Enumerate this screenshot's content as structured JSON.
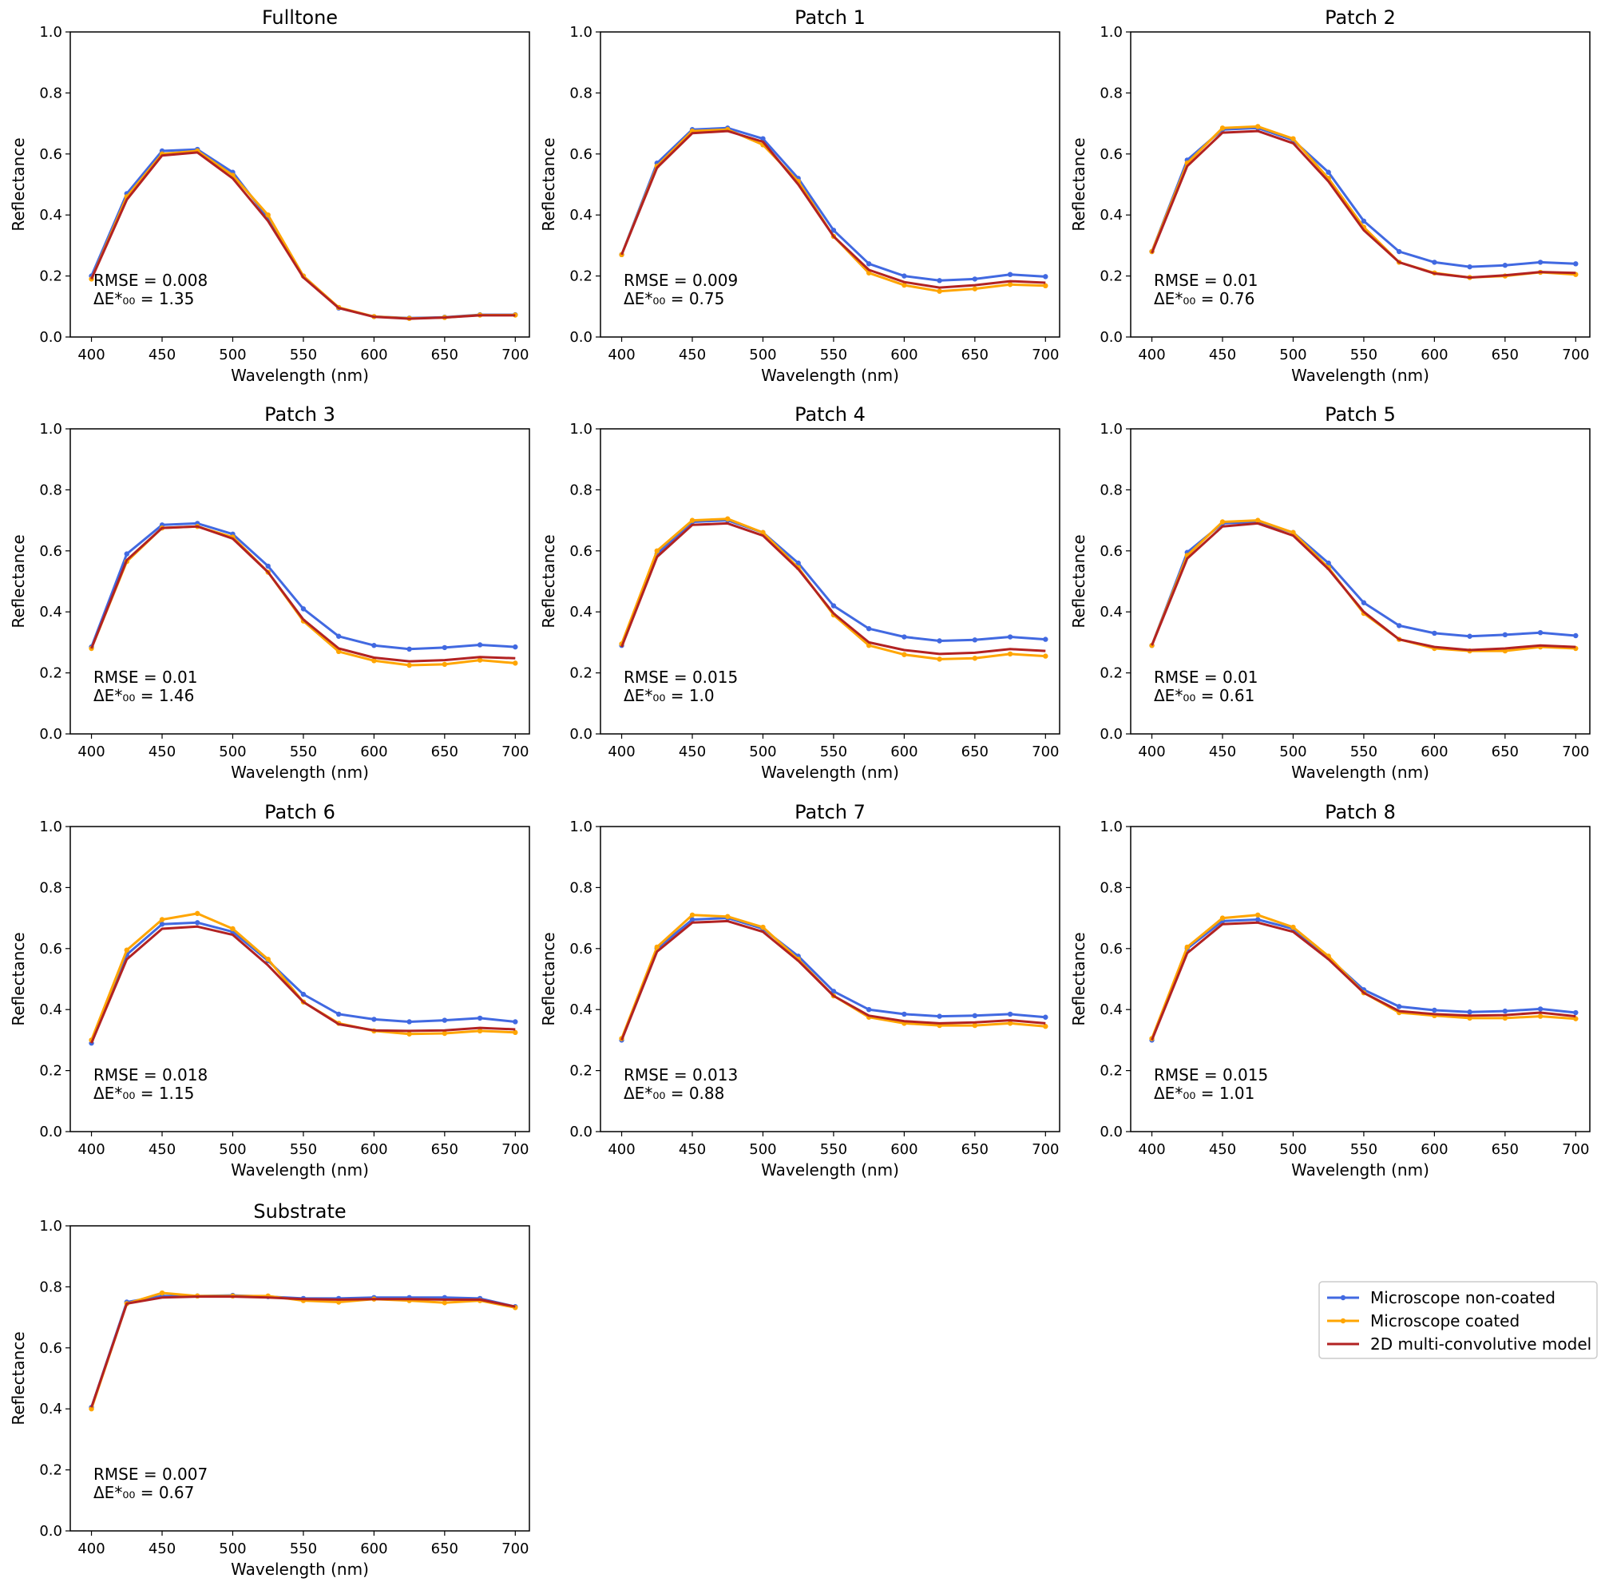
{
  "figure": {
    "legend": [
      {
        "label": "Microscope non-coated",
        "color": "#4169e1",
        "marker": true
      },
      {
        "label": "Microscope coated",
        "color": "#ffa500",
        "marker": true
      },
      {
        "label": "2D multi-convolutive model",
        "color": "#b22222",
        "marker": false
      }
    ]
  },
  "chart_data": [
    {
      "type": "line",
      "title": "Fulltone",
      "xlabel": "Wavelength (nm)",
      "ylabel": "Reflectance",
      "xlim": [
        385,
        710
      ],
      "ylim": [
        0,
        1
      ],
      "xticks": [
        "400",
        "450",
        "500",
        "550",
        "600",
        "650",
        "700"
      ],
      "yticks": [
        "0.0",
        "0.2",
        "0.4",
        "0.6",
        "0.8",
        "1.0"
      ],
      "annotations": [
        "RMSE = 0.008",
        "ΔE*₀₀ = 1.35"
      ],
      "x": [
        400,
        425,
        450,
        475,
        500,
        525,
        550,
        575,
        600,
        625,
        650,
        675,
        700
      ],
      "series": [
        {
          "name": "Microscope non-coated",
          "values": [
            0.2,
            0.47,
            0.61,
            0.615,
            0.54,
            0.39,
            0.2,
            0.095,
            0.067,
            0.062,
            0.065,
            0.073,
            0.073
          ]
        },
        {
          "name": "Microscope coated",
          "values": [
            0.19,
            0.46,
            0.6,
            0.61,
            0.53,
            0.4,
            0.2,
            0.097,
            0.067,
            0.061,
            0.064,
            0.072,
            0.072
          ]
        },
        {
          "name": "2D multi-convolutive model",
          "values": [
            0.19,
            0.45,
            0.595,
            0.605,
            0.52,
            0.38,
            0.195,
            0.095,
            0.066,
            0.06,
            0.064,
            0.071,
            0.071
          ]
        }
      ]
    },
    {
      "type": "line",
      "title": "Patch 1",
      "xlabel": "Wavelength (nm)",
      "ylabel": "Reflectance",
      "xlim": [
        385,
        710
      ],
      "ylim": [
        0,
        1
      ],
      "xticks": [
        "400",
        "450",
        "500",
        "550",
        "600",
        "650",
        "700"
      ],
      "yticks": [
        "0.0",
        "0.2",
        "0.4",
        "0.6",
        "0.8",
        "1.0"
      ],
      "annotations": [
        "RMSE = 0.009",
        "ΔE*₀₀ = 0.75"
      ],
      "x": [
        400,
        425,
        450,
        475,
        500,
        525,
        550,
        575,
        600,
        625,
        650,
        675,
        700
      ],
      "series": [
        {
          "name": "Microscope non-coated",
          "values": [
            0.27,
            0.57,
            0.68,
            0.685,
            0.65,
            0.52,
            0.35,
            0.24,
            0.2,
            0.185,
            0.19,
            0.205,
            0.198
          ]
        },
        {
          "name": "Microscope coated",
          "values": [
            0.27,
            0.56,
            0.675,
            0.68,
            0.63,
            0.51,
            0.33,
            0.21,
            0.17,
            0.15,
            0.158,
            0.172,
            0.168
          ]
        },
        {
          "name": "2D multi-convolutive model",
          "values": [
            0.27,
            0.555,
            0.668,
            0.675,
            0.64,
            0.5,
            0.33,
            0.22,
            0.18,
            0.162,
            0.17,
            0.183,
            0.178
          ]
        }
      ]
    },
    {
      "type": "line",
      "title": "Patch 2",
      "xlabel": "Wavelength (nm)",
      "ylabel": "Reflectance",
      "xlim": [
        385,
        710
      ],
      "ylim": [
        0,
        1
      ],
      "xticks": [
        "400",
        "450",
        "500",
        "550",
        "600",
        "650",
        "700"
      ],
      "yticks": [
        "0.0",
        "0.2",
        "0.4",
        "0.6",
        "0.8",
        "1.0"
      ],
      "annotations": [
        "RMSE = 0.01",
        "ΔE*₀₀ = 0.76"
      ],
      "x": [
        400,
        425,
        450,
        475,
        500,
        525,
        550,
        575,
        600,
        625,
        650,
        675,
        700
      ],
      "series": [
        {
          "name": "Microscope non-coated",
          "values": [
            0.28,
            0.58,
            0.68,
            0.685,
            0.645,
            0.54,
            0.38,
            0.28,
            0.245,
            0.23,
            0.235,
            0.245,
            0.24
          ]
        },
        {
          "name": "Microscope coated",
          "values": [
            0.28,
            0.57,
            0.685,
            0.69,
            0.65,
            0.52,
            0.36,
            0.245,
            0.21,
            0.195,
            0.2,
            0.212,
            0.205
          ]
        },
        {
          "name": "2D multi-convolutive model",
          "values": [
            0.275,
            0.56,
            0.67,
            0.675,
            0.635,
            0.51,
            0.35,
            0.245,
            0.208,
            0.195,
            0.202,
            0.213,
            0.21
          ]
        }
      ]
    },
    {
      "type": "line",
      "title": "Patch 3",
      "xlabel": "Wavelength (nm)",
      "ylabel": "Reflectance",
      "xlim": [
        385,
        710
      ],
      "ylim": [
        0,
        1
      ],
      "xticks": [
        "400",
        "450",
        "500",
        "550",
        "600",
        "650",
        "700"
      ],
      "yticks": [
        "0.0",
        "0.2",
        "0.4",
        "0.6",
        "0.8",
        "1.0"
      ],
      "annotations": [
        "RMSE = 0.01",
        "ΔE*₀₀ = 1.46"
      ],
      "x": [
        400,
        425,
        450,
        475,
        500,
        525,
        550,
        575,
        600,
        625,
        650,
        675,
        700
      ],
      "series": [
        {
          "name": "Microscope non-coated",
          "values": [
            0.285,
            0.59,
            0.685,
            0.69,
            0.655,
            0.55,
            0.41,
            0.32,
            0.29,
            0.278,
            0.283,
            0.292,
            0.285
          ]
        },
        {
          "name": "Microscope coated",
          "values": [
            0.28,
            0.565,
            0.675,
            0.68,
            0.645,
            0.53,
            0.37,
            0.27,
            0.24,
            0.225,
            0.228,
            0.242,
            0.232
          ]
        },
        {
          "name": "2D multi-convolutive model",
          "values": [
            0.28,
            0.57,
            0.675,
            0.68,
            0.64,
            0.53,
            0.375,
            0.28,
            0.25,
            0.238,
            0.242,
            0.252,
            0.248
          ]
        }
      ]
    },
    {
      "type": "line",
      "title": "Patch 4",
      "xlabel": "Wavelength (nm)",
      "ylabel": "Reflectance",
      "xlim": [
        385,
        710
      ],
      "ylim": [
        0,
        1
      ],
      "xticks": [
        "400",
        "450",
        "500",
        "550",
        "600",
        "650",
        "700"
      ],
      "yticks": [
        "0.0",
        "0.2",
        "0.4",
        "0.6",
        "0.8",
        "1.0"
      ],
      "annotations": [
        "RMSE = 0.015",
        "ΔE*₀₀ = 1.0"
      ],
      "x": [
        400,
        425,
        450,
        475,
        500,
        525,
        550,
        575,
        600,
        625,
        650,
        675,
        700
      ],
      "series": [
        {
          "name": "Microscope non-coated",
          "values": [
            0.29,
            0.59,
            0.695,
            0.7,
            0.66,
            0.56,
            0.42,
            0.345,
            0.318,
            0.305,
            0.308,
            0.318,
            0.31
          ]
        },
        {
          "name": "Microscope coated",
          "values": [
            0.295,
            0.6,
            0.7,
            0.705,
            0.66,
            0.545,
            0.39,
            0.29,
            0.26,
            0.245,
            0.248,
            0.262,
            0.255
          ]
        },
        {
          "name": "2D multi-convolutive model",
          "values": [
            0.285,
            0.58,
            0.685,
            0.69,
            0.65,
            0.54,
            0.395,
            0.3,
            0.275,
            0.262,
            0.266,
            0.278,
            0.272
          ]
        }
      ]
    },
    {
      "type": "line",
      "title": "Patch 5",
      "xlabel": "Wavelength (nm)",
      "ylabel": "Reflectance",
      "xlim": [
        385,
        710
      ],
      "ylim": [
        0,
        1
      ],
      "xticks": [
        "400",
        "450",
        "500",
        "550",
        "600",
        "650",
        "700"
      ],
      "yticks": [
        "0.0",
        "0.2",
        "0.4",
        "0.6",
        "0.8",
        "1.0"
      ],
      "annotations": [
        "RMSE = 0.01",
        "ΔE*₀₀ = 0.61"
      ],
      "x": [
        400,
        425,
        450,
        475,
        500,
        525,
        550,
        575,
        600,
        625,
        650,
        675,
        700
      ],
      "series": [
        {
          "name": "Microscope non-coated",
          "values": [
            0.29,
            0.595,
            0.69,
            0.695,
            0.66,
            0.56,
            0.43,
            0.355,
            0.33,
            0.32,
            0.325,
            0.332,
            0.322
          ]
        },
        {
          "name": "Microscope coated",
          "values": [
            0.29,
            0.585,
            0.695,
            0.7,
            0.66,
            0.545,
            0.395,
            0.31,
            0.28,
            0.272,
            0.272,
            0.285,
            0.28
          ]
        },
        {
          "name": "2D multi-convolutive model",
          "values": [
            0.29,
            0.575,
            0.68,
            0.69,
            0.65,
            0.54,
            0.4,
            0.31,
            0.285,
            0.275,
            0.28,
            0.29,
            0.285
          ]
        }
      ]
    },
    {
      "type": "line",
      "title": "Patch 6",
      "xlabel": "Wavelength (nm)",
      "ylabel": "Reflectance",
      "xlim": [
        385,
        710
      ],
      "ylim": [
        0,
        1
      ],
      "xticks": [
        "400",
        "450",
        "500",
        "550",
        "600",
        "650",
        "700"
      ],
      "yticks": [
        "0.0",
        "0.2",
        "0.4",
        "0.6",
        "0.8",
        "1.0"
      ],
      "annotations": [
        "RMSE = 0.018",
        "ΔE*₀₀ = 1.15"
      ],
      "x": [
        400,
        425,
        450,
        475,
        500,
        525,
        550,
        575,
        600,
        625,
        650,
        675,
        700
      ],
      "series": [
        {
          "name": "Microscope non-coated",
          "values": [
            0.29,
            0.58,
            0.68,
            0.685,
            0.655,
            0.56,
            0.45,
            0.385,
            0.368,
            0.36,
            0.365,
            0.372,
            0.36
          ]
        },
        {
          "name": "Microscope coated",
          "values": [
            0.3,
            0.595,
            0.695,
            0.715,
            0.665,
            0.565,
            0.425,
            0.355,
            0.33,
            0.32,
            0.322,
            0.33,
            0.325
          ]
        },
        {
          "name": "2D multi-convolutive model",
          "values": [
            0.29,
            0.565,
            0.665,
            0.672,
            0.645,
            0.545,
            0.425,
            0.352,
            0.332,
            0.33,
            0.332,
            0.34,
            0.335
          ]
        }
      ]
    },
    {
      "type": "line",
      "title": "Patch 7",
      "xlabel": "Wavelength (nm)",
      "ylabel": "Reflectance",
      "xlim": [
        385,
        710
      ],
      "ylim": [
        0,
        1
      ],
      "xticks": [
        "400",
        "450",
        "500",
        "550",
        "600",
        "650",
        "700"
      ],
      "yticks": [
        "0.0",
        "0.2",
        "0.4",
        "0.6",
        "0.8",
        "1.0"
      ],
      "annotations": [
        "RMSE = 0.013",
        "ΔE*₀₀ = 0.88"
      ],
      "x": [
        400,
        425,
        450,
        475,
        500,
        525,
        550,
        575,
        600,
        625,
        650,
        675,
        700
      ],
      "series": [
        {
          "name": "Microscope non-coated",
          "values": [
            0.3,
            0.6,
            0.695,
            0.7,
            0.665,
            0.575,
            0.46,
            0.4,
            0.385,
            0.378,
            0.38,
            0.385,
            0.375
          ]
        },
        {
          "name": "Microscope coated",
          "values": [
            0.305,
            0.605,
            0.71,
            0.705,
            0.67,
            0.565,
            0.445,
            0.375,
            0.355,
            0.348,
            0.348,
            0.355,
            0.345
          ]
        },
        {
          "name": "2D multi-convolutive model",
          "values": [
            0.3,
            0.59,
            0.685,
            0.69,
            0.655,
            0.56,
            0.445,
            0.38,
            0.362,
            0.355,
            0.358,
            0.365,
            0.355
          ]
        }
      ]
    },
    {
      "type": "line",
      "title": "Patch 8",
      "xlabel": "Wavelength (nm)",
      "ylabel": "Reflectance",
      "xlim": [
        385,
        710
      ],
      "ylim": [
        0,
        1
      ],
      "xticks": [
        "400",
        "450",
        "500",
        "550",
        "600",
        "650",
        "700"
      ],
      "yticks": [
        "0.0",
        "0.2",
        "0.4",
        "0.6",
        "0.8",
        "1.0"
      ],
      "annotations": [
        "RMSE = 0.015",
        "ΔE*₀₀ = 1.01"
      ],
      "x": [
        400,
        425,
        450,
        475,
        500,
        525,
        550,
        575,
        600,
        625,
        650,
        675,
        700
      ],
      "series": [
        {
          "name": "Microscope non-coated",
          "values": [
            0.3,
            0.6,
            0.69,
            0.695,
            0.665,
            0.57,
            0.465,
            0.41,
            0.398,
            0.392,
            0.395,
            0.402,
            0.39
          ]
        },
        {
          "name": "Microscope coated",
          "values": [
            0.305,
            0.605,
            0.7,
            0.71,
            0.67,
            0.575,
            0.455,
            0.39,
            0.38,
            0.372,
            0.372,
            0.378,
            0.37
          ]
        },
        {
          "name": "2D multi-convolutive model",
          "values": [
            0.3,
            0.585,
            0.68,
            0.685,
            0.655,
            0.565,
            0.455,
            0.395,
            0.385,
            0.38,
            0.382,
            0.39,
            0.378
          ]
        }
      ]
    },
    {
      "type": "line",
      "title": "Substrate",
      "xlabel": "Wavelength (nm)",
      "ylabel": "Reflectance",
      "xlim": [
        385,
        710
      ],
      "ylim": [
        0,
        1
      ],
      "xticks": [
        "400",
        "450",
        "500",
        "550",
        "600",
        "650",
        "700"
      ],
      "yticks": [
        "0.0",
        "0.2",
        "0.4",
        "0.6",
        "0.8",
        "1.0"
      ],
      "annotations": [
        "RMSE = 0.007",
        "ΔE*₀₀ = 0.67"
      ],
      "x": [
        400,
        425,
        450,
        475,
        500,
        525,
        550,
        575,
        600,
        625,
        650,
        675,
        700
      ],
      "series": [
        {
          "name": "Microscope non-coated",
          "values": [
            0.405,
            0.75,
            0.77,
            0.77,
            0.772,
            0.768,
            0.762,
            0.762,
            0.765,
            0.765,
            0.765,
            0.762,
            0.735
          ]
        },
        {
          "name": "Microscope coated",
          "values": [
            0.4,
            0.745,
            0.78,
            0.77,
            0.77,
            0.77,
            0.755,
            0.75,
            0.76,
            0.755,
            0.748,
            0.755,
            0.732
          ]
        },
        {
          "name": "2D multi-convolutive model",
          "values": [
            0.405,
            0.745,
            0.765,
            0.768,
            0.768,
            0.765,
            0.76,
            0.758,
            0.76,
            0.76,
            0.758,
            0.758,
            0.735
          ]
        }
      ]
    }
  ]
}
